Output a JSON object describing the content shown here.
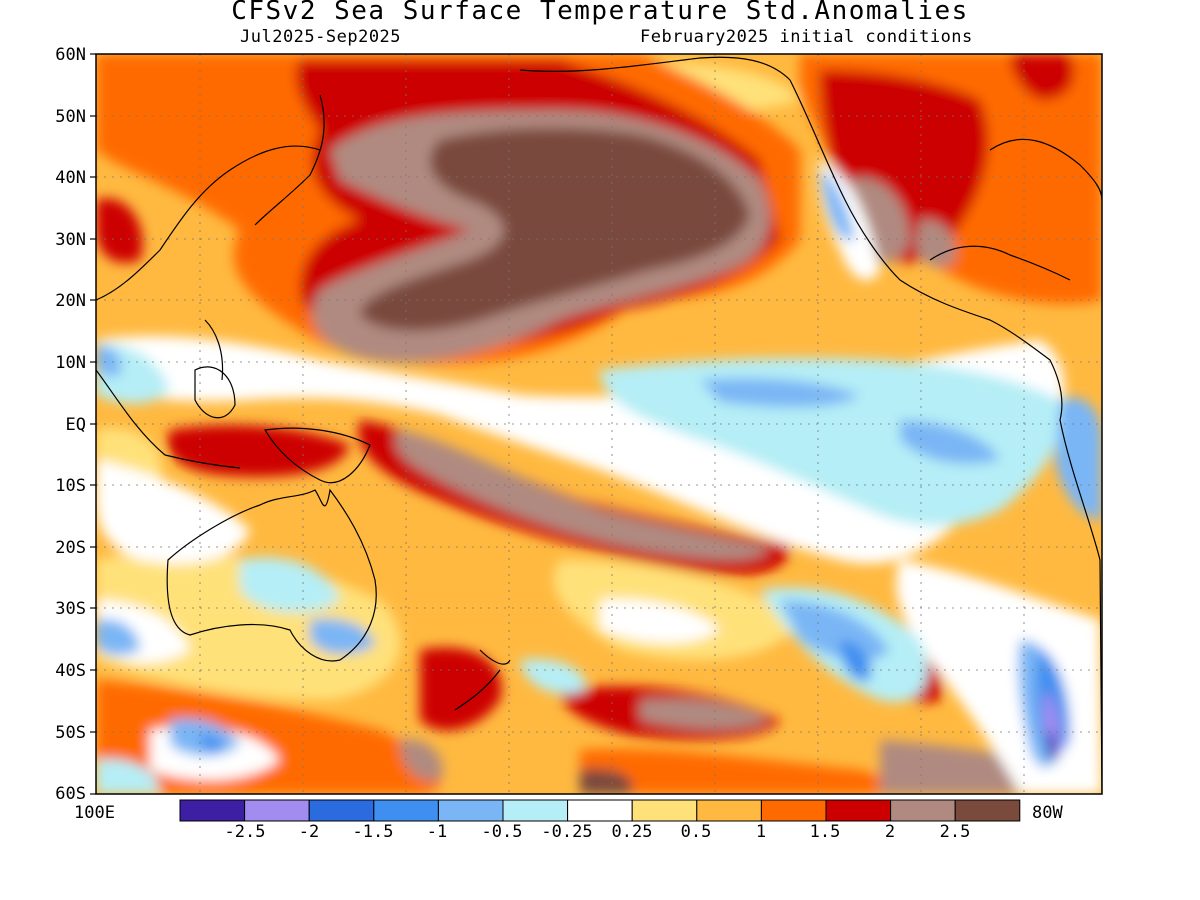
{
  "title": "CFSv2 Sea Surface Temperature Std.Anomalies",
  "subtitle_left": "Jul2025-Sep2025",
  "subtitle_right": "February2025 initial conditions",
  "latitude_labels": [
    "60N",
    "50N",
    "40N",
    "30N",
    "20N",
    "10N",
    "EQ",
    "10S",
    "20S",
    "30S",
    "40S",
    "50S",
    "60S"
  ],
  "longitude_labels": {
    "west_edge": "100E",
    "east_edge": "80W"
  },
  "colorbar": {
    "colors": [
      "#3d1fa3",
      "#a38cf0",
      "#2a6be0",
      "#3f8ff0",
      "#7ab6f5",
      "#b5eef6",
      "#ffffff",
      "#ffe17a",
      "#ffb940",
      "#ff6a00",
      "#cc0000",
      "#b08a80",
      "#7a4a3c"
    ],
    "tick_labels": [
      "-2.5",
      "-2",
      "-1.5",
      "-1",
      "-0.5",
      "-0.25",
      "0.25",
      "0.5",
      "1",
      "1.5",
      "2",
      "2.5"
    ]
  },
  "legend": {
    "-2.5": "#3d1fa3"
  }
}
